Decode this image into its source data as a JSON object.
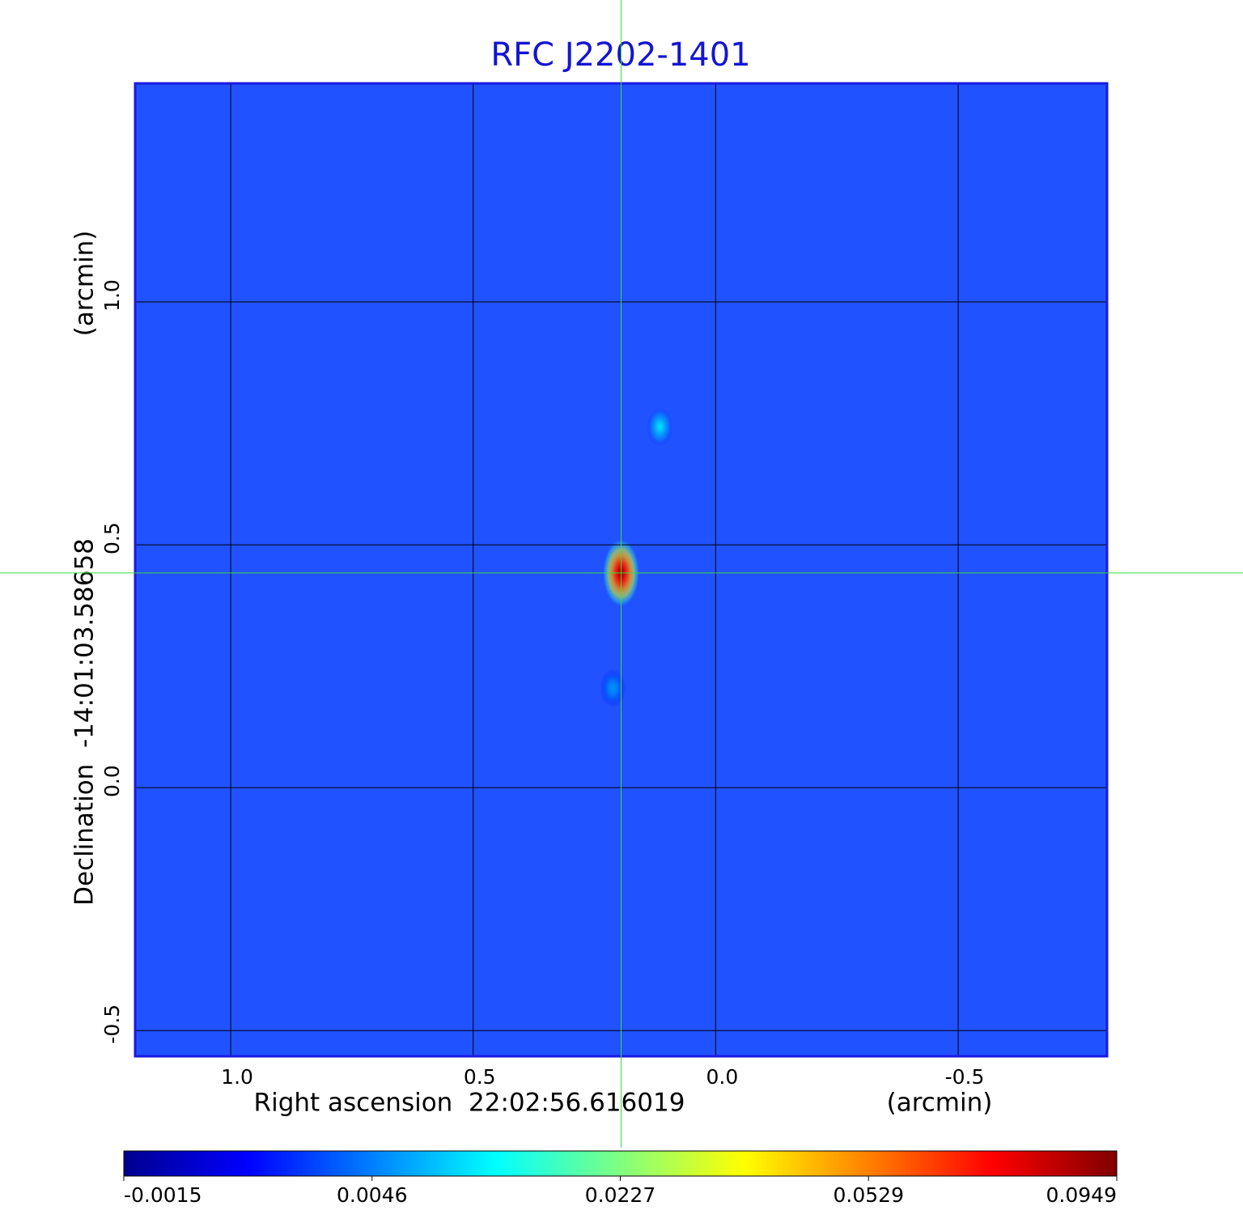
{
  "chart_data": {
    "type": "heatmap",
    "title": "RFC J2202-1401",
    "x_label": "Right ascension  22:02:56.616019",
    "x_unit": "(arcmin)",
    "y_label": "Declination  -14:01:03.58658",
    "y_unit": "(arcmin)",
    "xlim": [
      1.197,
      -0.807
    ],
    "ylim": [
      -0.553,
      1.45
    ],
    "xticks": [
      {
        "value": 1,
        "label": "1.0"
      },
      0.5,
      {
        "value": 0,
        "label": "0.0"
      },
      -0.5
    ],
    "yticks": [
      -0.5,
      {
        "value": 0,
        "label": "0.0"
      },
      0.5,
      {
        "value": 1,
        "label": "1.0"
      }
    ],
    "grid": true,
    "colormap": "jet",
    "colorbar_ticks": [
      -0.0015,
      0.0046,
      0.0227,
      0.0529,
      0.0949
    ],
    "sources": {
      "x": [
        0.195,
        0.115,
        0.212
      ],
      "y": [
        0.442,
        0.743,
        0.205
      ],
      "values": [
        0.0949,
        0.012,
        0.006
      ]
    }
  }
}
